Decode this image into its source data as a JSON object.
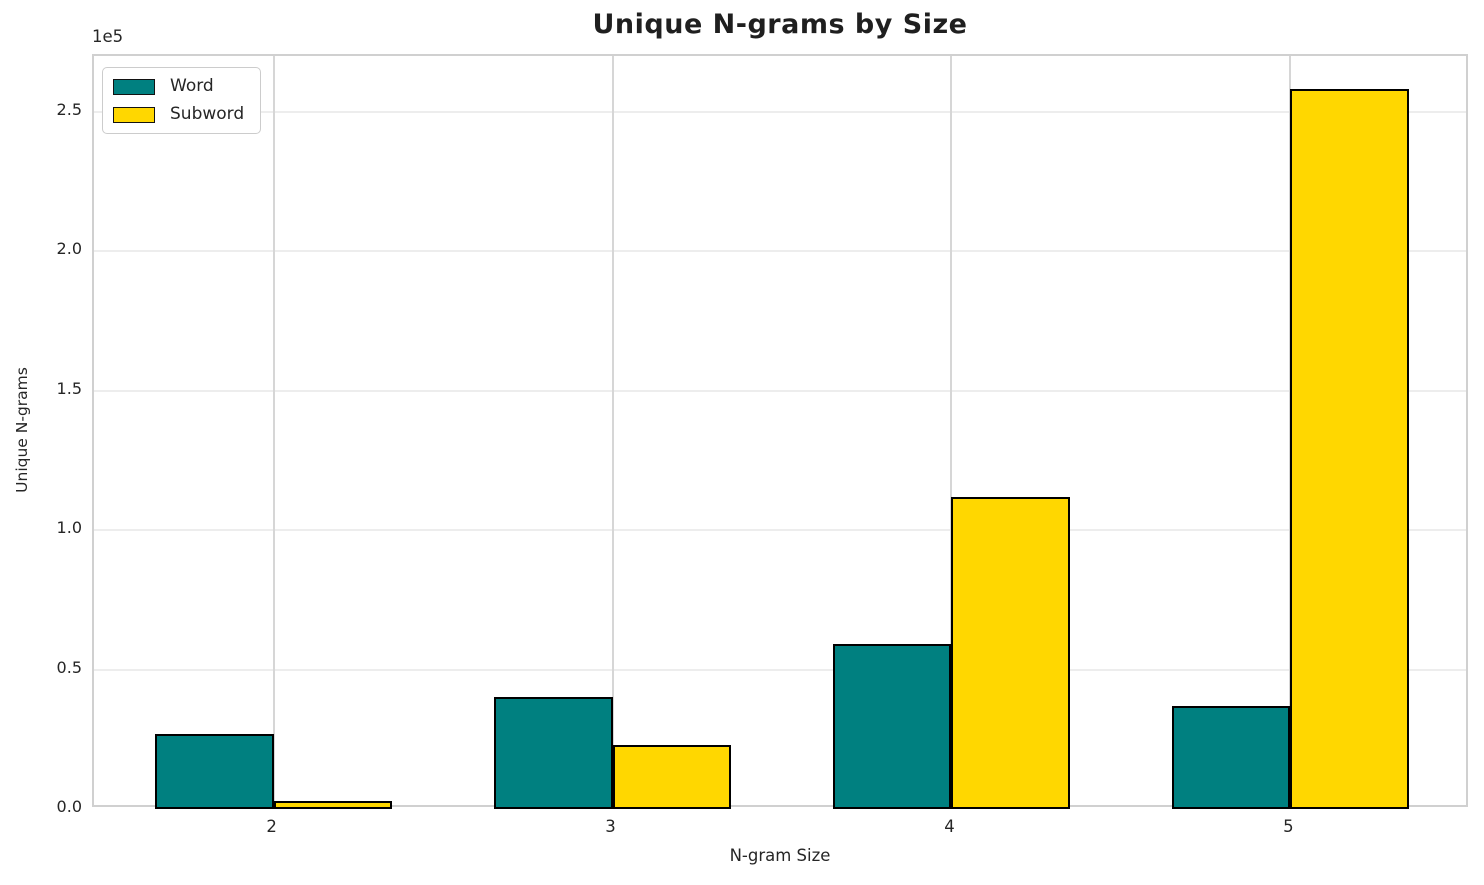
{
  "figure": {
    "background_color": "#ffffff",
    "text_color": "#262626",
    "spine_color": "#d0d0d0",
    "h_grid_color": "#ededed",
    "v_grid_color": "#d6d6d6",
    "bar_edge_color": "#000000"
  },
  "chart_data": {
    "type": "bar",
    "title": "Unique N-grams by Size",
    "xlabel": "N-gram Size",
    "ylabel": "Unique N-grams",
    "y_scale_label": "1e5",
    "categories": [
      "2",
      "3",
      "4",
      "5"
    ],
    "series": [
      {
        "name": "Word",
        "color": "#008080",
        "values": [
          27000,
          40000,
          59000,
          37000
        ]
      },
      {
        "name": "Subword",
        "color": "#FFD700",
        "values": [
          3000,
          23000,
          112000,
          258000
        ]
      }
    ],
    "ylim": [
      0,
      270000
    ],
    "y_ticks": [
      0,
      50000,
      100000,
      150000,
      200000,
      250000
    ],
    "y_tick_labels": [
      "0.0",
      "0.5",
      "1.0",
      "1.5",
      "2.0",
      "2.5"
    ],
    "grid": true,
    "legend_position": "upper left",
    "bar_width_fraction": 0.35,
    "group_gap_fraction": 0.3
  }
}
